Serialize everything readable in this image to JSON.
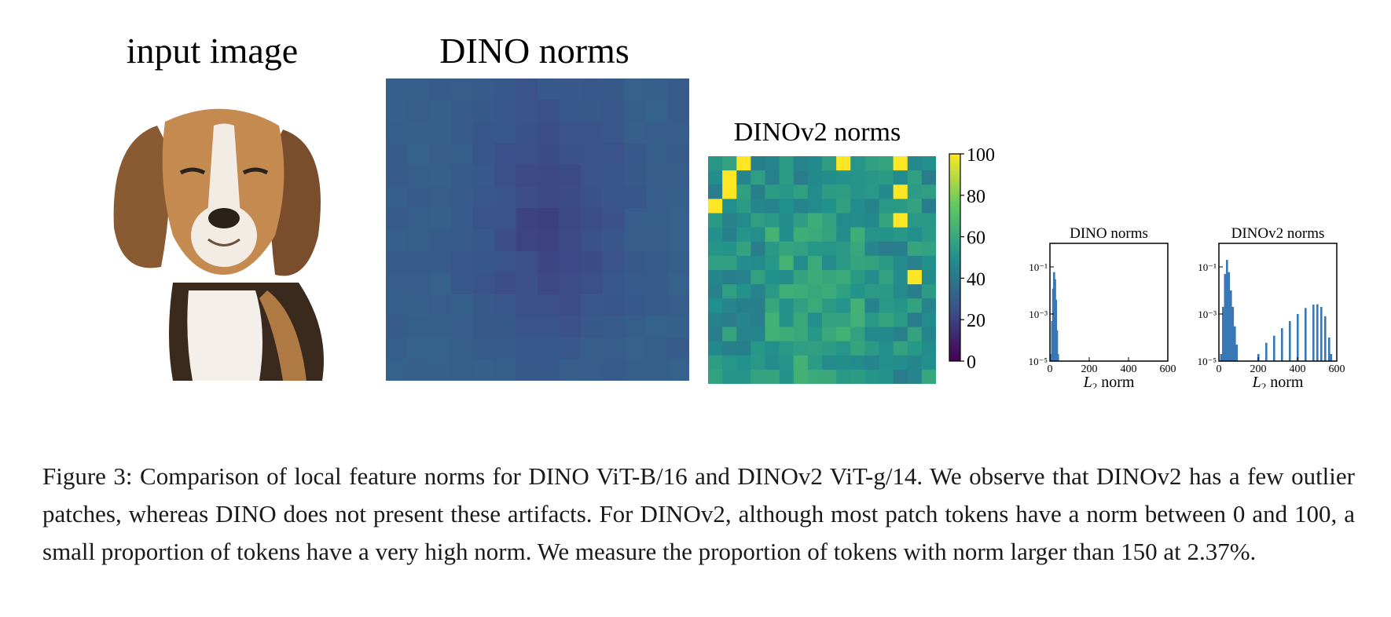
{
  "figure": {
    "panel_input_title": "input image",
    "panel_dino_title": "DINO norms",
    "panel_dinov2_title": "DINOv2 norms",
    "colorbar_ticks": [
      "100",
      "80",
      "60",
      "40",
      "20",
      "0"
    ],
    "colorbar_range": [
      0,
      100
    ],
    "colormap": [
      "#440154",
      "#3b528b",
      "#21918c",
      "#5ec962",
      "#fde725"
    ]
  },
  "chart_data": [
    {
      "type": "bar",
      "title": "DINO norms",
      "xlabel": "L2 norm",
      "ylabel": "",
      "y_scale": "log",
      "xlim": [
        0,
        600
      ],
      "ylim": [
        1e-05,
        1
      ],
      "x_ticks": [
        "0",
        "200",
        "400",
        "600"
      ],
      "y_ticks": [
        "10⁻¹",
        "10⁻³",
        "10⁻⁵"
      ],
      "bar_color": "#3a78b5",
      "x": [
        5,
        10,
        15,
        20,
        25,
        30,
        35,
        40
      ],
      "values": [
        2e-05,
        0.0005,
        0.012,
        0.06,
        0.03,
        0.004,
        0.0002,
        2e-05
      ]
    },
    {
      "type": "bar",
      "title": "DINOv2 norms",
      "xlabel": "L2 norm",
      "ylabel": "",
      "y_scale": "log",
      "xlim": [
        0,
        600
      ],
      "ylim": [
        1e-05,
        1
      ],
      "x_ticks": [
        "0",
        "200",
        "400",
        "600"
      ],
      "y_ticks": [
        "10⁻¹",
        "10⁻³",
        "10⁻⁵"
      ],
      "bar_color": "#3a78b5",
      "x": [
        10,
        20,
        30,
        40,
        50,
        60,
        70,
        80,
        90,
        100,
        200,
        240,
        280,
        320,
        360,
        400,
        440,
        480,
        500,
        520,
        540,
        560,
        570
      ],
      "values": [
        2e-05,
        0.002,
        0.05,
        0.2,
        0.06,
        0.01,
        0.002,
        0.0003,
        5e-05,
        1e-05,
        2e-05,
        6e-05,
        0.00012,
        0.00025,
        0.0005,
        0.001,
        0.0018,
        0.0025,
        0.0026,
        0.002,
        0.0008,
        0.0001,
        2e-05
      ]
    }
  ],
  "caption": "Figure 3:  Comparison of local feature norms for DINO ViT-B/16 and DINOv2 ViT-g/14. We observe that DINOv2 has a few outlier patches, whereas DINO does not present these artifacts. For DINOv2, although most patch tokens have a norm between 0 and 100, a small proportion of tokens have a very high norm. We measure the proportion of tokens with norm larger than 150 at 2.37%."
}
